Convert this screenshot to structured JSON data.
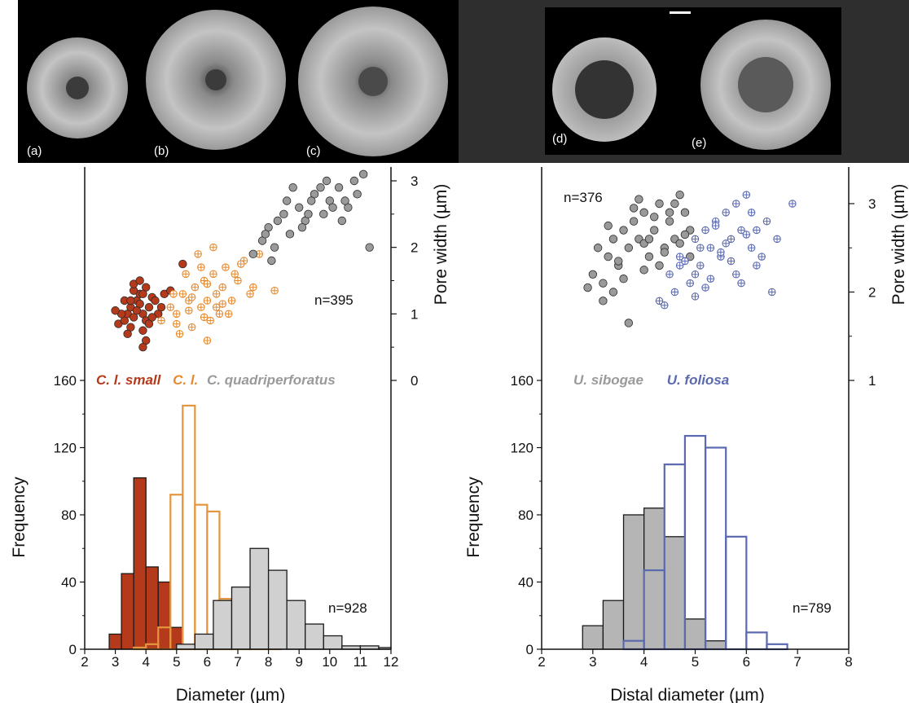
{
  "chart_data": [
    {
      "panel": "left",
      "type": "histogram+scatter",
      "photo_labels": [
        "(a)",
        "(b)",
        "(c)"
      ],
      "legend": [
        {
          "text": "C. l. small",
          "color": "#b5391b"
        },
        {
          "text": "C. l.",
          "color": "#e58a2e"
        },
        {
          "text": "C. quadriperforatus",
          "color": "#9a9a9a"
        }
      ],
      "xlabel": "Diameter (µm)",
      "ylabel": "Frequency",
      "y2label": "Pore width (µm)",
      "xlim": [
        2,
        12
      ],
      "xticks": [
        "2",
        "3",
        "4",
        "5",
        "6",
        "7",
        "8",
        "9",
        "10",
        "11",
        "12"
      ],
      "ylim": [
        0,
        160
      ],
      "yticks": [
        "0",
        "40",
        "80",
        "120",
        "160"
      ],
      "y2ticks": [
        "0",
        "1",
        "2",
        "3"
      ],
      "n_hist": "n=928",
      "n_scatter": "n=395",
      "histograms": [
        {
          "name": "C. l. small",
          "style": "filled",
          "fill": "#b5391b",
          "stroke": "#1a1a1a",
          "bin_edges": [
            2.8,
            3.2,
            3.6,
            4.0,
            4.4,
            4.8,
            5.2
          ],
          "values": [
            9,
            45,
            102,
            49,
            40,
            13
          ]
        },
        {
          "name": "C. l.",
          "style": "outline",
          "fill": "none",
          "stroke": "#e3963d",
          "bin_edges": [
            3.6,
            4.0,
            4.4,
            4.8,
            5.2,
            5.6,
            6.0,
            6.4,
            6.8,
            7.2,
            7.6,
            8.0,
            8.4
          ],
          "values": [
            1,
            3,
            13,
            92,
            145,
            86,
            82,
            30,
            10,
            3,
            1,
            1
          ]
        },
        {
          "name": "C. quadriperforatus",
          "style": "filled",
          "fill": "#d0d0d0",
          "stroke": "#1a1a1a",
          "bin_edges": [
            5.0,
            5.6,
            6.2,
            6.8,
            7.4,
            8.0,
            8.6,
            9.2,
            9.8,
            10.4,
            11.0,
            11.6,
            12.0
          ],
          "values": [
            3,
            9,
            29,
            37,
            60,
            47,
            29,
            15,
            8,
            2,
            2,
            1
          ]
        }
      ],
      "scatter": [
        {
          "name": "C. l. small",
          "marker": "filled",
          "color": "#b5391b",
          "x": [
            3.1,
            3.3,
            3.4,
            3.5,
            3.6,
            3.7,
            3.8,
            3.9,
            4.0,
            4.1,
            4.2,
            3.2,
            3.5,
            3.6,
            3.8,
            3.9,
            4.0,
            4.3,
            4.4,
            3.3,
            3.7,
            3.9,
            4.1,
            4.5,
            3.4,
            3.6,
            3.8,
            4.2,
            4.6,
            3.0,
            3.5,
            4.0,
            4.8,
            3.9,
            5.2
          ],
          "y": [
            0.85,
            0.9,
            1.0,
            1.1,
            0.95,
            1.2,
            1.3,
            1.0,
            0.9,
            1.1,
            1.25,
            1.0,
            0.8,
            1.35,
            1.15,
            0.75,
            1.4,
            1.2,
            1.0,
            1.2,
            1.05,
            1.3,
            0.85,
            1.1,
            0.7,
            1.45,
            1.5,
            0.95,
            1.3,
            1.05,
            1.2,
            0.6,
            1.35,
            0.5,
            1.75
          ]
        },
        {
          "name": "C. l.",
          "marker": "crosshair",
          "color": "#e58a2e",
          "x": [
            4.5,
            4.8,
            5.0,
            5.2,
            5.4,
            5.5,
            5.6,
            5.8,
            5.9,
            6.0,
            6.1,
            6.2,
            6.3,
            6.4,
            6.5,
            6.6,
            6.8,
            7.0,
            7.2,
            7.4,
            5.1,
            5.3,
            5.7,
            6.0,
            6.3,
            6.7,
            5.5,
            5.9,
            6.2,
            6.9,
            7.5,
            7.7,
            8.2,
            4.9,
            5.4,
            6.5,
            7.1,
            6.0,
            5.0,
            5.8
          ],
          "y": [
            0.9,
            1.1,
            1.0,
            1.3,
            1.2,
            0.8,
            1.4,
            1.1,
            1.5,
            1.2,
            0.9,
            1.6,
            1.3,
            1.0,
            1.4,
            1.7,
            1.2,
            1.5,
            1.8,
            1.3,
            0.7,
            1.6,
            1.9,
            0.6,
            1.1,
            1.0,
            1.25,
            0.95,
            2.0,
            1.6,
            1.4,
            1.9,
            1.35,
            1.3,
            1.05,
            1.15,
            1.75,
            1.45,
            0.85,
            1.7
          ]
        },
        {
          "name": "C. quadriperforatus",
          "marker": "filled",
          "color": "#9a9a9a",
          "x": [
            7.5,
            7.8,
            8.0,
            8.2,
            8.5,
            8.7,
            9.0,
            9.2,
            9.5,
            9.8,
            10.0,
            10.3,
            10.6,
            10.8,
            11.1,
            11.3,
            8.3,
            8.8,
            9.4,
            9.9,
            10.4,
            10.9,
            7.9,
            8.6,
            9.1,
            9.7,
            10.1,
            8.1,
            9.3,
            10.5
          ],
          "y": [
            1.9,
            2.1,
            2.3,
            2.0,
            2.5,
            2.2,
            2.6,
            2.4,
            2.8,
            2.5,
            2.7,
            2.9,
            2.6,
            3.0,
            3.1,
            2.0,
            2.4,
            2.9,
            2.7,
            3.0,
            2.4,
            2.8,
            2.2,
            2.7,
            2.3,
            2.9,
            2.6,
            1.8,
            2.5,
            2.7
          ]
        }
      ]
    },
    {
      "panel": "right",
      "type": "histogram+scatter",
      "photo_labels": [
        "(d)",
        "(e)"
      ],
      "legend": [
        {
          "text": "U. sibogae",
          "color": "#9a9a9a"
        },
        {
          "text": "U. foliosa",
          "color": "#5b6ab0"
        }
      ],
      "xlabel": "Distal diameter (µm)",
      "ylabel": "Frequency",
      "y2label": "Pore width (µm)",
      "xlim": [
        2,
        8
      ],
      "xticks": [
        "2",
        "3",
        "4",
        "5",
        "6",
        "7",
        "8"
      ],
      "ylim": [
        0,
        160
      ],
      "yticks": [
        "0",
        "40",
        "80",
        "120",
        "160"
      ],
      "y2ticks": [
        "1",
        "2",
        "3"
      ],
      "n_hist": "n=789",
      "n_scatter": "n=376",
      "histograms": [
        {
          "name": "U. sibogae",
          "style": "filled",
          "fill": "#b5b5b5",
          "stroke": "#1a1a1a",
          "bin_edges": [
            2.8,
            3.2,
            3.6,
            4.0,
            4.4,
            4.8,
            5.2,
            5.6
          ],
          "values": [
            14,
            29,
            80,
            84,
            67,
            18,
            5
          ]
        },
        {
          "name": "U. foliosa",
          "style": "outline",
          "fill": "none",
          "stroke": "#5b6ab0",
          "bin_edges": [
            3.6,
            4.0,
            4.4,
            4.8,
            5.2,
            5.6,
            6.0,
            6.4,
            6.8
          ],
          "values": [
            5,
            47,
            110,
            127,
            120,
            67,
            10,
            3
          ]
        }
      ],
      "scatter": [
        {
          "name": "U. sibogae",
          "marker": "filled",
          "color": "#9a9a9a",
          "x": [
            2.9,
            3.0,
            3.1,
            3.2,
            3.3,
            3.4,
            3.5,
            3.6,
            3.7,
            3.8,
            3.9,
            4.0,
            4.1,
            4.2,
            4.3,
            4.4,
            4.5,
            4.6,
            4.7,
            4.8,
            4.9,
            3.2,
            3.5,
            3.8,
            4.0,
            4.2,
            4.4,
            4.6,
            4.8,
            3.3,
            3.6,
            4.1,
            4.5,
            4.9,
            3.7,
            4.3,
            3.4,
            4.7,
            3.9,
            4.0
          ],
          "y": [
            2.05,
            2.2,
            2.5,
            2.1,
            2.4,
            2.6,
            2.3,
            2.7,
            2.5,
            2.8,
            2.6,
            2.9,
            2.4,
            2.7,
            3.0,
            2.5,
            2.8,
            2.6,
            3.1,
            2.9,
            2.7,
            1.9,
            2.35,
            2.95,
            2.55,
            2.85,
            2.45,
            3.0,
            2.65,
            2.75,
            2.15,
            2.6,
            2.9,
            2.4,
            1.65,
            2.3,
            2.0,
            2.55,
            3.05,
            2.25
          ]
        },
        {
          "name": "U. foliosa",
          "marker": "crosshair",
          "color": "#5b6ab0",
          "x": [
            4.5,
            4.7,
            4.9,
            5.0,
            5.1,
            5.2,
            5.3,
            5.4,
            5.5,
            5.6,
            5.7,
            5.8,
            5.9,
            6.0,
            6.1,
            6.2,
            6.4,
            6.6,
            6.9,
            4.3,
            4.6,
            4.8,
            5.0,
            5.3,
            5.5,
            5.8,
            6.0,
            6.3,
            4.4,
            5.2,
            5.6,
            5.9,
            6.5,
            4.7,
            5.4,
            6.1,
            5.1,
            5.7,
            6.2,
            5.0
          ],
          "y": [
            2.2,
            2.4,
            2.1,
            2.6,
            2.3,
            2.7,
            2.5,
            2.8,
            2.4,
            2.9,
            2.6,
            3.0,
            2.7,
            3.1,
            2.5,
            2.3,
            2.8,
            2.6,
            3.0,
            1.9,
            2.0,
            2.35,
            1.95,
            2.15,
            2.45,
            2.2,
            2.65,
            2.4,
            1.85,
            2.05,
            2.55,
            2.1,
            2.0,
            2.3,
            2.75,
            2.9,
            2.5,
            2.35,
            2.7,
            2.2
          ]
        }
      ]
    }
  ]
}
